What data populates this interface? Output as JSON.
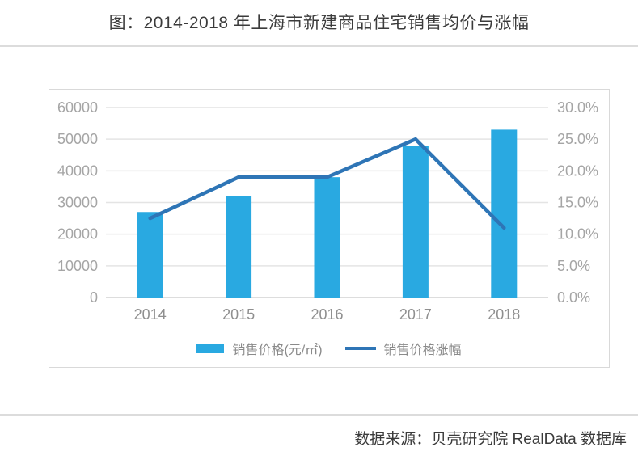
{
  "header": {
    "title": "图：2014-2018 年上海市新建商品住宅销售均价与涨幅"
  },
  "footer": {
    "source": "数据来源：贝壳研究院 RealData 数据库"
  },
  "legend": {
    "bar_label": "销售价格(元/㎡)",
    "line_label": "销售价格涨幅"
  },
  "colors": {
    "bar": "#29a9e1",
    "line": "#2e75b6",
    "grid": "#e4e4e4",
    "baseline": "#d2d2d2",
    "axis_text": "#a5a5a5",
    "x_axis_text": "#8f8f8f",
    "panel_border": "#d9d9d9",
    "title_text": "#3b3b3b"
  },
  "chart_data": {
    "type": "bar",
    "subtype": "bar-line-combo",
    "title": "图：2014-2018 年上海市新建商品住宅销售均价与涨幅",
    "categories": [
      "2014",
      "2015",
      "2016",
      "2017",
      "2018"
    ],
    "series": [
      {
        "name": "销售价格(元/㎡)",
        "type": "bar",
        "axis": "left",
        "values": [
          27000,
          32000,
          38000,
          48000,
          53000
        ]
      },
      {
        "name": "销售价格涨幅",
        "type": "line",
        "axis": "right",
        "unit": "%",
        "values": [
          12.5,
          19.0,
          19.0,
          25.0,
          11.0
        ]
      }
    ],
    "left_axis": {
      "min": 0,
      "max": 60000,
      "step": 10000,
      "ticks": [
        "0",
        "10000",
        "20000",
        "30000",
        "40000",
        "50000",
        "60000"
      ]
    },
    "right_axis": {
      "min": 0,
      "max": 30,
      "step": 5,
      "ticks": [
        "0.0%",
        "5.0%",
        "10.0%",
        "15.0%",
        "20.0%",
        "25.0%",
        "30.0%"
      ]
    },
    "grid": true,
    "legend_position": "bottom"
  }
}
